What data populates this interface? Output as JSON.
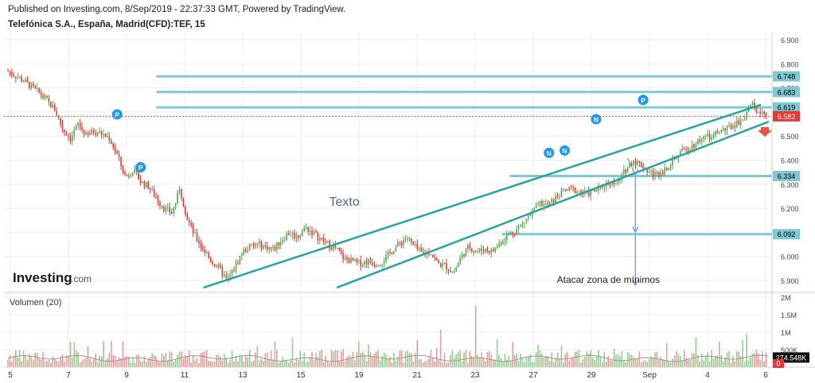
{
  "header": {
    "published": "Published on Investing.com, 8/Sep/2019 - 22:37:33 GMT, Powered by TradingView.",
    "symbol": "Telefónica S.A., España, Madrid(CFD):TEF, 15"
  },
  "logo": {
    "main": "Investing",
    "suffix": ".com"
  },
  "colors": {
    "up": "#4caf50",
    "down": "#e53935",
    "channel": "#26a69a",
    "level": "#7fc9d3",
    "arrow": "#6e8fd6",
    "price": "#e53935",
    "volume_up": "#8fd18f",
    "volume_down": "#ef9a9a",
    "volume_ma": "#999999",
    "bubble": "#2196f3",
    "grid": "#eeeeee"
  },
  "chart_data": [
    {
      "type": "candlestick",
      "ylim": [
        5.85,
        6.93
      ],
      "y_ticks": [
        "6.900",
        "6.800",
        "6.700",
        "6.600",
        "6.500",
        "6.400",
        "6.300",
        "6.200",
        "6.100",
        "6.000",
        "5.900"
      ],
      "x_ticks": [
        "5",
        "7",
        "9",
        "11",
        "13",
        "15",
        "19",
        "21",
        "23",
        "27",
        "29",
        "Sep",
        "4",
        "6"
      ],
      "close_path": [
        [
          0,
          6.77
        ],
        [
          2,
          6.73
        ],
        [
          4,
          6.68
        ],
        [
          6,
          6.61
        ],
        [
          7,
          6.53
        ],
        [
          8,
          6.49
        ],
        [
          9,
          6.55
        ],
        [
          10,
          6.5
        ],
        [
          11,
          6.52
        ],
        [
          12,
          6.51
        ],
        [
          13,
          6.49
        ],
        [
          14,
          6.42
        ],
        [
          15,
          6.33
        ],
        [
          16,
          6.36
        ],
        [
          17,
          6.31
        ],
        [
          18,
          6.29
        ],
        [
          19,
          6.24
        ],
        [
          20,
          6.2
        ],
        [
          21,
          6.18
        ],
        [
          22,
          6.28
        ],
        [
          23,
          6.15
        ],
        [
          24,
          6.08
        ],
        [
          25,
          6.03
        ],
        [
          26,
          5.98
        ],
        [
          27,
          5.95
        ],
        [
          28,
          5.9
        ],
        [
          29,
          5.95
        ],
        [
          30,
          6.02
        ],
        [
          31,
          6.04
        ],
        [
          32,
          6.05
        ],
        [
          33,
          6.04
        ],
        [
          34,
          6.03
        ],
        [
          35,
          6.07
        ],
        [
          36,
          6.1
        ],
        [
          37,
          6.08
        ],
        [
          38,
          6.12
        ],
        [
          39,
          6.1
        ],
        [
          40,
          6.07
        ],
        [
          41,
          6.05
        ],
        [
          42,
          6.03
        ],
        [
          43,
          5.99
        ],
        [
          44,
          5.98
        ],
        [
          45,
          5.97
        ],
        [
          46,
          5.98
        ],
        [
          47,
          5.97
        ],
        [
          48,
          5.98
        ],
        [
          49,
          6.02
        ],
        [
          50,
          6.05
        ],
        [
          51,
          6.08
        ],
        [
          52,
          6.04
        ],
        [
          53,
          6.01
        ],
        [
          54,
          6.02
        ],
        [
          55,
          5.97
        ],
        [
          56,
          5.96
        ],
        [
          57,
          5.93
        ],
        [
          58,
          6.0
        ],
        [
          59,
          6.04
        ],
        [
          60,
          6.02
        ],
        [
          61,
          6.03
        ],
        [
          62,
          6.02
        ],
        [
          63,
          6.06
        ],
        [
          64,
          6.09
        ],
        [
          65,
          6.11
        ],
        [
          66,
          6.14
        ],
        [
          67,
          6.18
        ],
        [
          68,
          6.22
        ],
        [
          69,
          6.21
        ],
        [
          70,
          6.24
        ],
        [
          71,
          6.27
        ],
        [
          72,
          6.28
        ],
        [
          73,
          6.27
        ],
        [
          74,
          6.26
        ],
        [
          75,
          6.27
        ],
        [
          76,
          6.29
        ],
        [
          77,
          6.31
        ],
        [
          78,
          6.3
        ],
        [
          79,
          6.36
        ],
        [
          80,
          6.4
        ],
        [
          81,
          6.38
        ],
        [
          82,
          6.35
        ],
        [
          83,
          6.34
        ],
        [
          84,
          6.36
        ],
        [
          85,
          6.4
        ],
        [
          86,
          6.43
        ],
        [
          87,
          6.45
        ],
        [
          88,
          6.47
        ],
        [
          89,
          6.5
        ],
        [
          90,
          6.49
        ],
        [
          91,
          6.52
        ],
        [
          92,
          6.53
        ],
        [
          93,
          6.55
        ],
        [
          94,
          6.57
        ],
        [
          95,
          6.63
        ],
        [
          96,
          6.61
        ],
        [
          97,
          6.59
        ]
      ],
      "channel_lines": [
        {
          "from": [
            25,
            5.87
          ],
          "to": [
            96,
            6.63
          ]
        },
        {
          "from": [
            42,
            5.87
          ],
          "to": [
            97,
            6.56
          ]
        }
      ],
      "horizontal_levels": [
        {
          "label": "6.748",
          "value": 6.748,
          "from_x": 19
        },
        {
          "label": "6.683",
          "value": 6.683,
          "from_x": 19
        },
        {
          "label": "6.619",
          "value": 6.619,
          "from_x": 19
        },
        {
          "label": "6.334",
          "value": 6.334,
          "from_x": 64
        },
        {
          "label": "6.092",
          "value": 6.092,
          "from_x": 63
        }
      ],
      "current_price": {
        "label": "6.582",
        "value": 6.582
      },
      "markers": [
        {
          "text": "P",
          "x": 14,
          "y": 6.59
        },
        {
          "text": "P",
          "x": 17,
          "y": 6.37
        },
        {
          "text": "N",
          "x": 69,
          "y": 6.43
        },
        {
          "text": "N",
          "x": 71,
          "y": 6.44
        },
        {
          "text": "N",
          "x": 75,
          "y": 6.57
        },
        {
          "text": "P",
          "x": 81,
          "y": 6.65
        }
      ],
      "annotations": [
        {
          "text": "Texto",
          "x": 41,
          "y": 6.21
        },
        {
          "text": "Atacar zona de mínimos",
          "x": 70,
          "y": 5.89
        }
      ],
      "arrows": [
        {
          "from": [
            79,
            6.41
          ],
          "to": [
            80,
            6.34
          ]
        },
        {
          "from": [
            80,
            6.33
          ],
          "to": [
            80,
            6.1
          ]
        },
        {
          "from": [
            80,
            6.09
          ],
          "to": [
            80,
            5.88
          ]
        }
      ]
    },
    {
      "type": "bar",
      "title": "Volumen (20)",
      "ylim": [
        0,
        2000000
      ],
      "y_ticks": [
        "2M",
        "1.5M",
        "1M",
        "500K"
      ],
      "last_value": {
        "label": "274.548K",
        "value": 274548
      },
      "zero_label": "0"
    }
  ]
}
